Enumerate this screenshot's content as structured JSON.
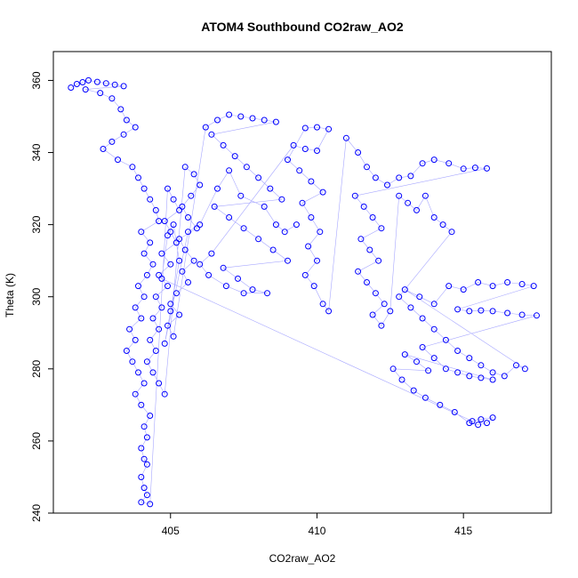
{
  "chart_data": {
    "type": "scatter",
    "title": "ATOM4 Southbound CO2raw_AO2",
    "xlabel": "CO2raw_AO2",
    "ylabel": "Theta (K)",
    "xlim": [
      401,
      418
    ],
    "ylim": [
      240,
      368
    ],
    "xticks": [
      405,
      410,
      415
    ],
    "yticks": [
      240,
      260,
      280,
      300,
      320,
      340,
      360
    ],
    "grid": false,
    "marker": "open-circle",
    "colors": {
      "series": "#0000ff",
      "axis": "#000000",
      "background": "#ffffff"
    },
    "series": [
      {
        "points": [
          [
            401.6,
            358.0
          ],
          [
            401.8,
            359.0
          ],
          [
            402.0,
            359.5
          ],
          [
            402.2,
            360.0
          ],
          [
            402.5,
            359.6
          ],
          [
            402.8,
            359.2
          ],
          [
            403.1,
            358.8
          ],
          [
            403.4,
            358.4
          ],
          [
            402.1,
            357.5
          ],
          [
            402.6,
            356.5
          ],
          [
            403.0,
            355.0
          ],
          [
            403.3,
            352.0
          ],
          [
            403.5,
            349.0
          ],
          [
            403.8,
            347.0
          ],
          [
            403.4,
            345.0
          ],
          [
            403.0,
            343.0
          ],
          [
            402.7,
            341.0
          ],
          [
            403.2,
            338.0
          ],
          [
            403.7,
            336.0
          ],
          [
            403.9,
            333.0
          ],
          [
            404.1,
            330.0
          ],
          [
            404.3,
            327.0
          ],
          [
            404.5,
            324.0
          ],
          [
            404.6,
            321.0
          ],
          [
            404.0,
            318.0
          ],
          [
            404.3,
            315.0
          ],
          [
            404.1,
            312.0
          ],
          [
            404.4,
            309.0
          ],
          [
            404.2,
            306.0
          ],
          [
            403.9,
            303.0
          ],
          [
            404.1,
            300.0
          ],
          [
            403.8,
            297.0
          ],
          [
            404.0,
            294.0
          ],
          [
            403.6,
            291.0
          ],
          [
            403.8,
            288.0
          ],
          [
            403.5,
            285.0
          ],
          [
            403.7,
            282.0
          ],
          [
            403.9,
            279.0
          ],
          [
            404.1,
            276.0
          ],
          [
            403.8,
            273.0
          ],
          [
            404.0,
            270.0
          ],
          [
            404.3,
            267.0
          ],
          [
            404.1,
            264.0
          ],
          [
            404.2,
            261.0
          ],
          [
            404.0,
            258.0
          ],
          [
            404.1,
            255.0
          ],
          [
            404.2,
            253.5
          ],
          [
            404.0,
            250.0
          ],
          [
            404.1,
            247.0
          ],
          [
            404.2,
            245.0
          ],
          [
            404.0,
            243.0
          ],
          [
            404.3,
            242.5
          ],
          [
            404.9,
            330.0
          ],
          [
            405.1,
            327.0
          ],
          [
            405.3,
            324.0
          ],
          [
            404.8,
            321.0
          ],
          [
            405.0,
            318.0
          ],
          [
            405.2,
            315.0
          ],
          [
            404.7,
            312.0
          ],
          [
            405.0,
            309.0
          ],
          [
            404.6,
            306.0
          ],
          [
            404.9,
            303.0
          ],
          [
            404.5,
            300.0
          ],
          [
            404.7,
            297.0
          ],
          [
            404.4,
            294.0
          ],
          [
            404.6,
            291.0
          ],
          [
            404.3,
            288.0
          ],
          [
            404.5,
            285.0
          ],
          [
            404.2,
            282.0
          ],
          [
            404.4,
            279.0
          ],
          [
            404.6,
            276.0
          ],
          [
            404.8,
            273.0
          ],
          [
            405.5,
            336.0
          ],
          [
            405.8,
            334.0
          ],
          [
            406.0,
            331.0
          ],
          [
            405.7,
            328.0
          ],
          [
            405.4,
            325.0
          ],
          [
            405.6,
            322.0
          ],
          [
            405.9,
            319.0
          ],
          [
            405.3,
            316.0
          ],
          [
            405.5,
            313.0
          ],
          [
            405.8,
            310.0
          ],
          [
            405.4,
            307.0
          ],
          [
            405.6,
            304.0
          ],
          [
            405.2,
            301.0
          ],
          [
            405.0,
            298.0
          ],
          [
            405.3,
            295.0
          ],
          [
            404.9,
            292.0
          ],
          [
            405.1,
            289.0
          ],
          [
            406.2,
            347.0
          ],
          [
            406.6,
            349.0
          ],
          [
            407.0,
            350.5
          ],
          [
            407.4,
            350.0
          ],
          [
            407.8,
            349.5
          ],
          [
            408.2,
            349.0
          ],
          [
            408.6,
            348.5
          ],
          [
            406.4,
            345.0
          ],
          [
            406.8,
            342.0
          ],
          [
            407.2,
            339.0
          ],
          [
            407.6,
            336.0
          ],
          [
            408.0,
            333.0
          ],
          [
            408.4,
            330.0
          ],
          [
            408.8,
            327.0
          ],
          [
            406.5,
            325.0
          ],
          [
            407.0,
            322.0
          ],
          [
            407.5,
            319.0
          ],
          [
            408.0,
            316.0
          ],
          [
            408.5,
            313.0
          ],
          [
            409.0,
            310.0
          ],
          [
            406.8,
            308.0
          ],
          [
            407.3,
            305.0
          ],
          [
            407.8,
            302.0
          ],
          [
            408.3,
            301.0
          ],
          [
            407.5,
            301.0
          ],
          [
            406.9,
            303.0
          ],
          [
            406.3,
            306.0
          ],
          [
            406.0,
            309.0
          ],
          [
            406.4,
            312.0
          ],
          [
            409.2,
            342.0
          ],
          [
            409.6,
            341.0
          ],
          [
            410.0,
            340.5
          ],
          [
            410.4,
            346.5
          ],
          [
            410.0,
            347.0
          ],
          [
            409.6,
            346.8
          ],
          [
            409.0,
            338.0
          ],
          [
            409.4,
            335.0
          ],
          [
            409.8,
            332.0
          ],
          [
            410.2,
            329.0
          ],
          [
            409.5,
            326.0
          ],
          [
            409.8,
            322.0
          ],
          [
            410.1,
            318.0
          ],
          [
            409.7,
            314.0
          ],
          [
            410.0,
            310.0
          ],
          [
            409.6,
            306.0
          ],
          [
            409.9,
            303.0
          ],
          [
            410.2,
            298.0
          ],
          [
            410.4,
            296.0
          ],
          [
            411.0,
            344.0
          ],
          [
            411.4,
            340.0
          ],
          [
            411.7,
            336.0
          ],
          [
            412.0,
            333.0
          ],
          [
            412.4,
            331.0
          ],
          [
            412.8,
            333.0
          ],
          [
            413.2,
            333.5
          ],
          [
            413.6,
            337.0
          ],
          [
            414.0,
            338.0
          ],
          [
            414.5,
            337.0
          ],
          [
            415.0,
            335.5
          ],
          [
            415.4,
            335.8
          ],
          [
            415.8,
            335.6
          ],
          [
            411.3,
            328.0
          ],
          [
            411.6,
            325.0
          ],
          [
            411.9,
            322.0
          ],
          [
            412.2,
            319.0
          ],
          [
            411.5,
            316.0
          ],
          [
            411.8,
            313.0
          ],
          [
            412.1,
            310.0
          ],
          [
            411.4,
            307.0
          ],
          [
            411.7,
            304.0
          ],
          [
            412.0,
            301.0
          ],
          [
            412.3,
            298.0
          ],
          [
            411.9,
            295.0
          ],
          [
            412.2,
            292.0
          ],
          [
            412.5,
            296.0
          ],
          [
            412.8,
            328.0
          ],
          [
            413.1,
            326.0
          ],
          [
            413.4,
            324.0
          ],
          [
            413.7,
            328.0
          ],
          [
            414.0,
            322.0
          ],
          [
            414.3,
            320.0
          ],
          [
            414.6,
            318.0
          ],
          [
            412.8,
            300.0
          ],
          [
            413.2,
            297.0
          ],
          [
            413.6,
            294.0
          ],
          [
            414.0,
            291.0
          ],
          [
            414.4,
            288.0
          ],
          [
            414.8,
            285.0
          ],
          [
            415.2,
            283.0
          ],
          [
            415.6,
            281.0
          ],
          [
            416.0,
            279.0
          ],
          [
            416.4,
            278.0
          ],
          [
            416.8,
            281.0
          ],
          [
            417.1,
            280.0
          ],
          [
            413.0,
            302.0
          ],
          [
            413.5,
            300.0
          ],
          [
            414.0,
            298.0
          ],
          [
            414.5,
            303.0
          ],
          [
            415.0,
            302.0
          ],
          [
            415.5,
            304.0
          ],
          [
            416.0,
            303.0
          ],
          [
            416.5,
            304.0
          ],
          [
            417.0,
            303.5
          ],
          [
            417.4,
            303.0
          ],
          [
            414.8,
            296.5
          ],
          [
            415.2,
            296.0
          ],
          [
            415.6,
            296.2
          ],
          [
            416.0,
            296.0
          ],
          [
            416.5,
            295.5
          ],
          [
            417.0,
            295.0
          ],
          [
            417.5,
            294.8
          ],
          [
            413.6,
            286.0
          ],
          [
            414.0,
            283.0
          ],
          [
            414.4,
            280.0
          ],
          [
            414.8,
            279.0
          ],
          [
            415.2,
            278.0
          ],
          [
            415.6,
            277.5
          ],
          [
            416.0,
            277.0
          ],
          [
            413.0,
            284.0
          ],
          [
            413.4,
            282.0
          ],
          [
            413.8,
            279.5
          ],
          [
            412.6,
            280.0
          ],
          [
            412.9,
            277.0
          ],
          [
            413.3,
            274.0
          ],
          [
            413.7,
            272.0
          ],
          [
            414.2,
            270.0
          ],
          [
            414.7,
            268.0
          ],
          [
            415.2,
            265.0
          ],
          [
            415.5,
            264.5
          ],
          [
            415.8,
            265.0
          ],
          [
            416.0,
            266.5
          ],
          [
            415.6,
            266.0
          ],
          [
            415.3,
            265.5
          ],
          [
            404.7,
            305.0
          ],
          [
            404.9,
            317.0
          ],
          [
            405.1,
            320.0
          ],
          [
            405.3,
            310.0
          ],
          [
            405.0,
            296.0
          ],
          [
            404.8,
            287.0
          ],
          [
            405.6,
            318.0
          ],
          [
            406.0,
            320.0
          ],
          [
            406.6,
            330.0
          ],
          [
            407.0,
            335.0
          ],
          [
            407.4,
            328.0
          ],
          [
            408.2,
            325.0
          ],
          [
            408.6,
            320.0
          ],
          [
            408.9,
            318.0
          ],
          [
            409.3,
            320.0
          ]
        ]
      }
    ]
  }
}
